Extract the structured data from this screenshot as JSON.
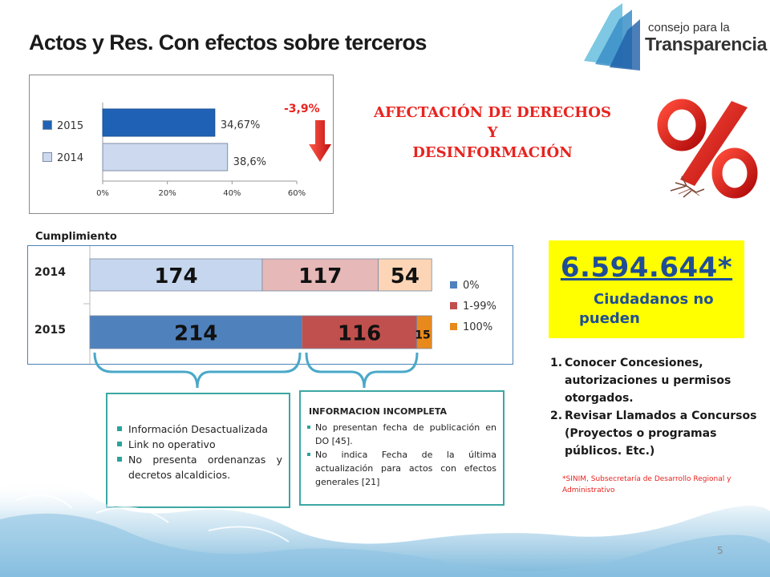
{
  "title": "Actos y Res. Con efectos sobre terceros",
  "logo": {
    "line1": "consejo para la",
    "line2": "Transparencia"
  },
  "chart_data": [
    {
      "type": "bar",
      "orientation": "horizontal",
      "categories": [
        "2015",
        "2014"
      ],
      "values": [
        34.67,
        38.6
      ],
      "data_labels": [
        "34,67%",
        "38,6%"
      ],
      "legend": [
        "2015",
        "2014"
      ],
      "xticks": [
        "0%",
        "20%",
        "40%",
        "60%"
      ],
      "xlim": [
        0,
        60
      ],
      "colors": [
        "#1f62b5",
        "#ccd9ee"
      ]
    },
    {
      "type": "bar",
      "orientation": "horizontal",
      "stacked": true,
      "categories": [
        "2014",
        "2015"
      ],
      "series": [
        {
          "name": "0%",
          "values": [
            174,
            214
          ]
        },
        {
          "name": "1-99%",
          "values": [
            117,
            116
          ]
        },
        {
          "name": "100%",
          "values": [
            54,
            15
          ]
        }
      ],
      "data_labels": [
        [
          "174",
          "117",
          "54"
        ],
        [
          "214",
          "116",
          "15"
        ]
      ],
      "colors_2014": [
        "#c6d6ee",
        "#e6b8b8",
        "#fbd5b6"
      ],
      "colors_2015": [
        "#4f81bd",
        "#c0504d",
        "#e8891c"
      ],
      "legend_colors": [
        "#4f81bd",
        "#c0504d",
        "#e8891c"
      ],
      "legend_placement": "right"
    }
  ],
  "delta": "-3,9%",
  "headline": {
    "line1": "AFECTACIÓN DE DERECHOS",
    "line2": "Y",
    "line3": "DESINFORMACIÓN"
  },
  "cumplimiento_label": "Cumplimiento",
  "chart2_labels": {
    "y2014": "2014",
    "y2015": "2015"
  },
  "box1": {
    "items": [
      "Información Desactualizada",
      "Link no operativo",
      "No presenta ordenanzas y decretos alcaldicios."
    ]
  },
  "box2": {
    "title": "INFORMACION INCOMPLETA",
    "items": [
      "No presentan fecha de publicación en DO [45].",
      "No indica Fecha de la última actualización para actos con efectos generales [21]"
    ]
  },
  "highlight": {
    "number": "6.594.644*",
    "line1": "Ciudadanos no",
    "line2": "pueden"
  },
  "list": [
    {
      "num": "1.",
      "text": "Conocer Concesiones, autorizaciones u permisos otorgados."
    },
    {
      "num": "2.",
      "text": " Revisar Llamados a Concursos (Proyectos o  programas públicos. Etc.)"
    }
  ],
  "source_note": "*SINIM, Subsecretaría de Desarrollo Regional y Administrativo",
  "page_number": "5"
}
